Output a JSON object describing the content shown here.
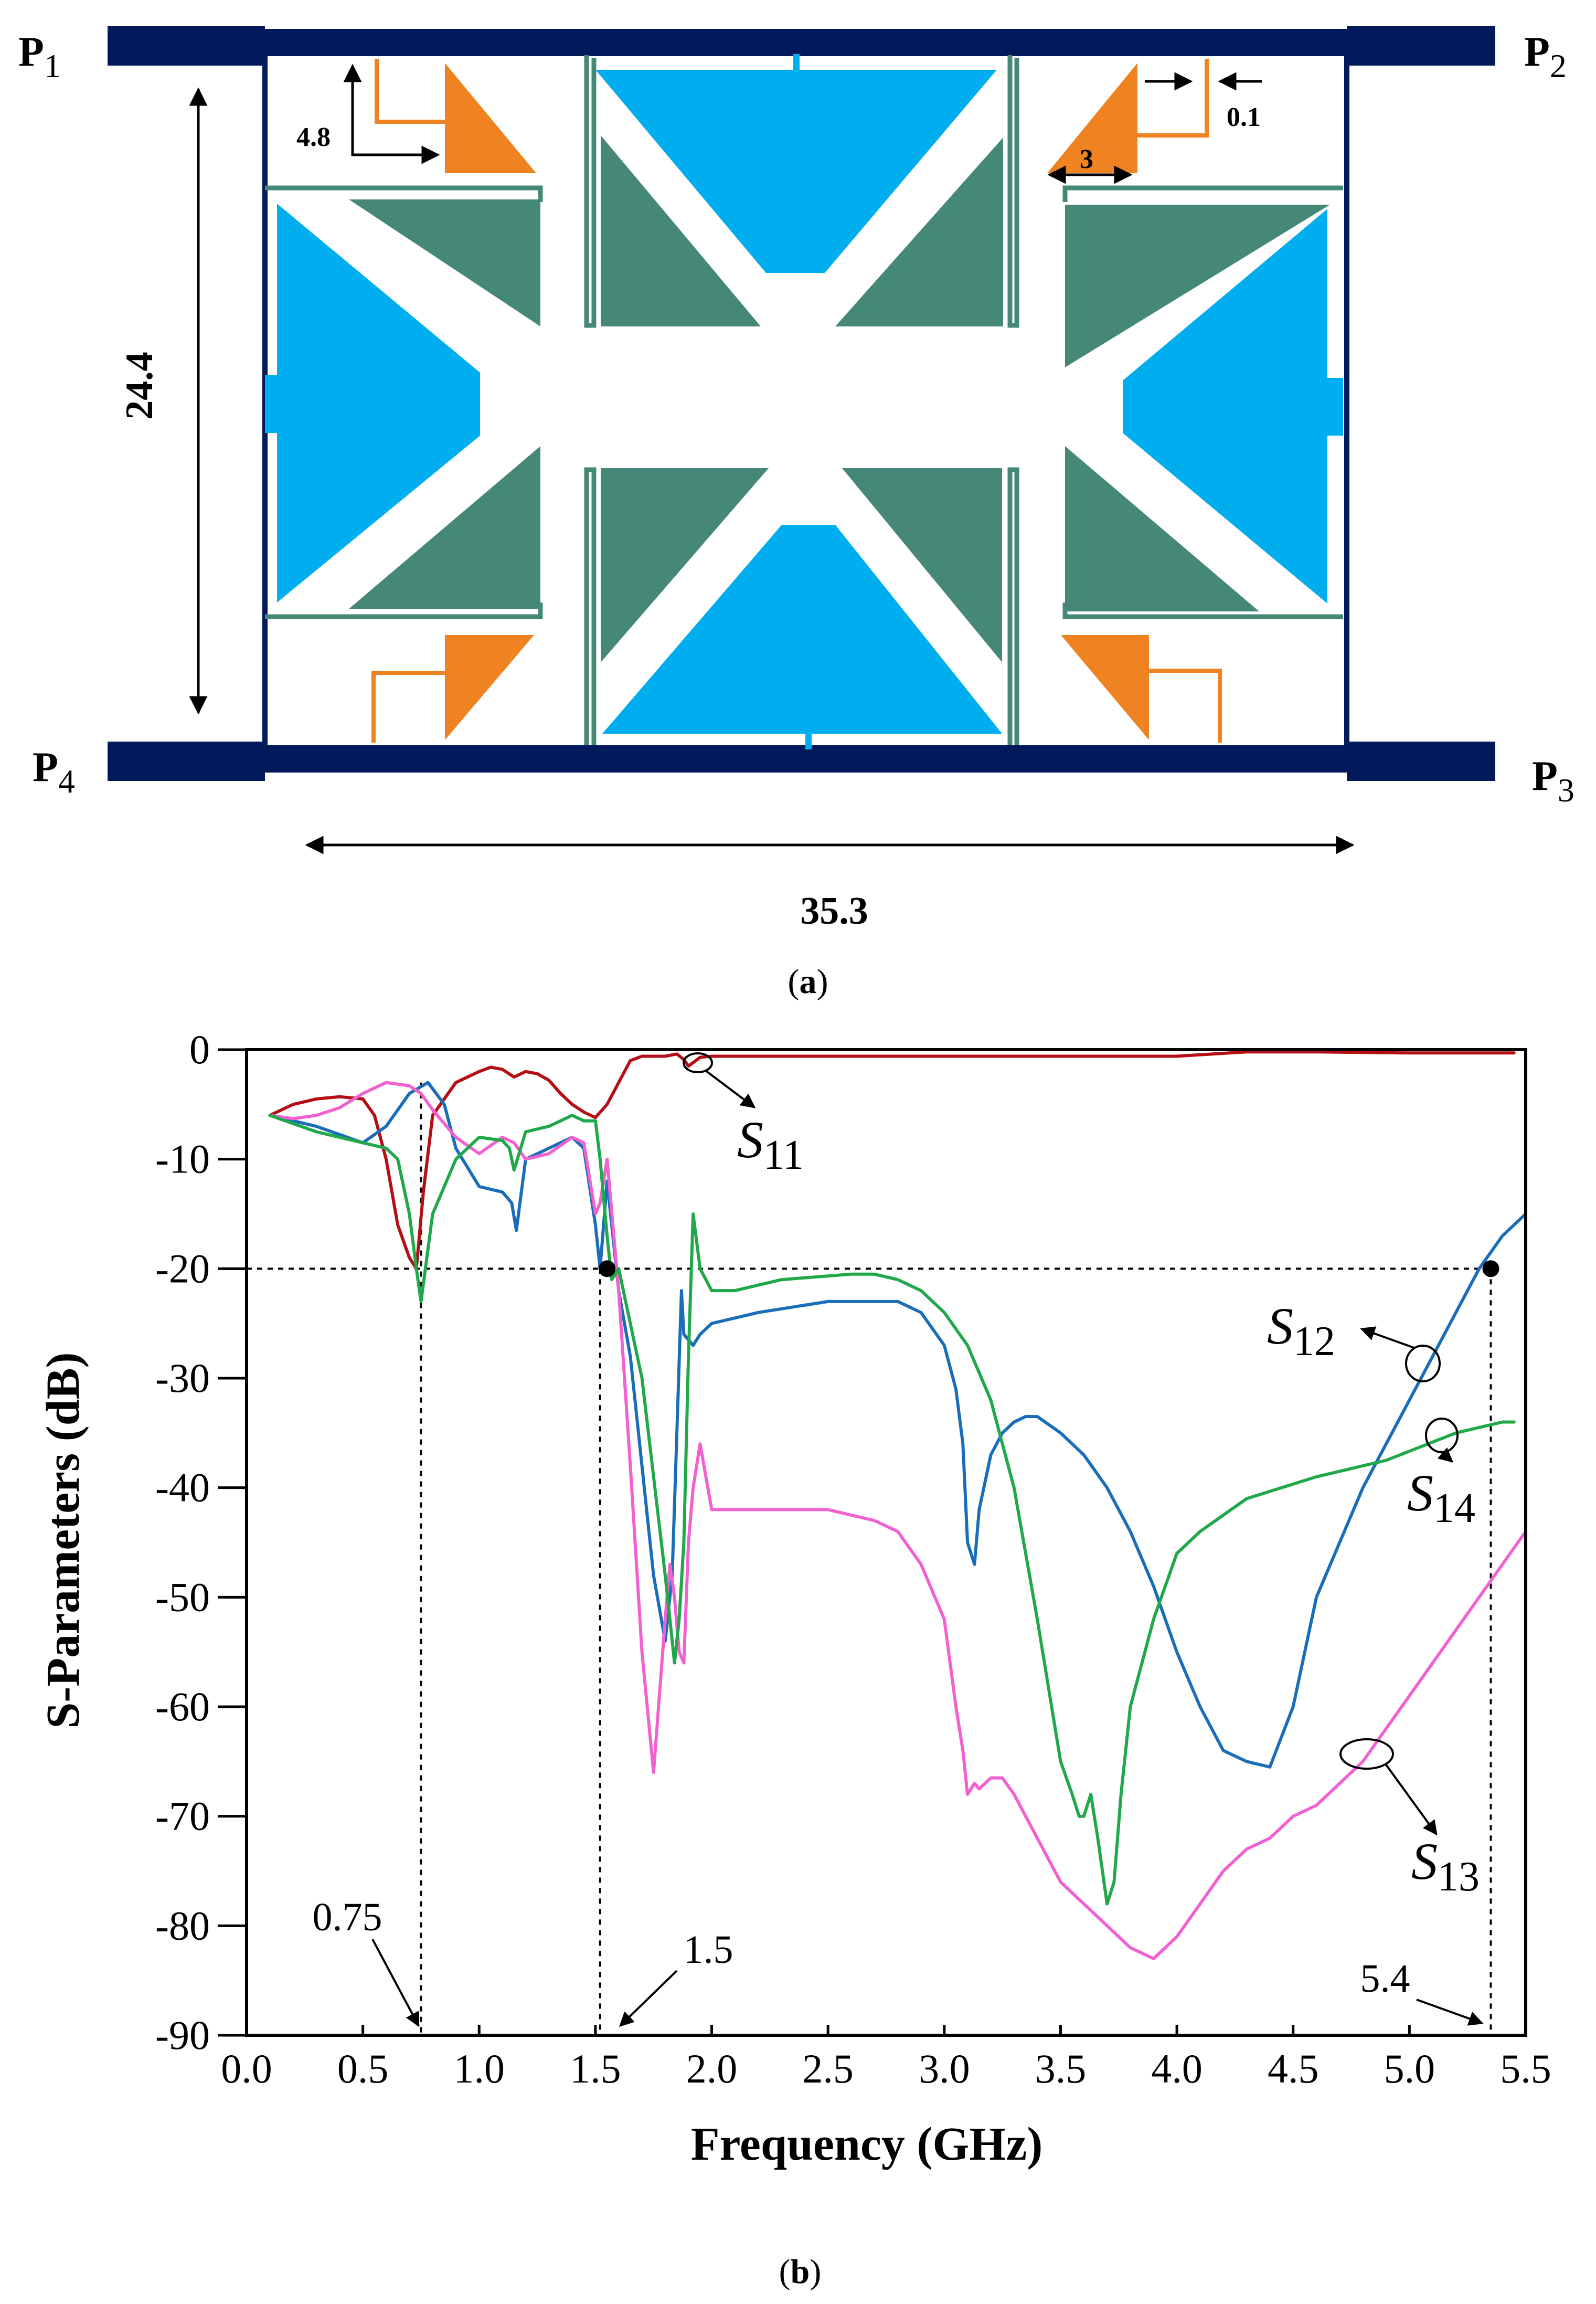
{
  "layout_diagram": {
    "ports": [
      {
        "label": "P",
        "sub": "1"
      },
      {
        "label": "P",
        "sub": "2"
      },
      {
        "label": "P",
        "sub": "3"
      },
      {
        "label": "P",
        "sub": "4"
      }
    ],
    "dimensions": {
      "height": "24.4",
      "width": "35.3",
      "stub_length": "4.8",
      "gap": "0.1",
      "triangle": "3"
    },
    "colors": {
      "line": "#001a5c",
      "patch": "#00aeef",
      "triangle": "#458878",
      "stub": "#f08321"
    }
  },
  "captions": {
    "a": "a",
    "b": "b"
  },
  "chart_data": {
    "type": "line",
    "xlabel": "Frequency  (GHz)",
    "ylabel": "S-Parameters (dB)",
    "xlim": [
      0.0,
      5.5
    ],
    "ylim": [
      -90,
      0
    ],
    "xticks": [
      "0.0",
      "0.5",
      "1.0",
      "1.5",
      "2.0",
      "2.5",
      "3.0",
      "3.5",
      "4.0",
      "4.5",
      "5.0",
      "5.5"
    ],
    "yticks": [
      "0",
      "-10",
      "-20",
      "-30",
      "-40",
      "-50",
      "-60",
      "-70",
      "-80",
      "-90"
    ],
    "series": [
      {
        "name": "S11",
        "label": "S",
        "sub": "11",
        "color": "#b40f14",
        "x": [
          0.1,
          0.2,
          0.3,
          0.4,
          0.5,
          0.55,
          0.6,
          0.65,
          0.7,
          0.73,
          0.76,
          0.8,
          0.9,
          1.0,
          1.05,
          1.1,
          1.15,
          1.2,
          1.25,
          1.3,
          1.35,
          1.4,
          1.45,
          1.5,
          1.55,
          1.6,
          1.65,
          1.7,
          1.8,
          1.85,
          1.88,
          1.9,
          1.95,
          2.0,
          2.5,
          3.0,
          3.5,
          4.0,
          4.3,
          4.6,
          5.0,
          5.45
        ],
        "y": [
          -6,
          -5,
          -4.5,
          -4.3,
          -4.5,
          -6,
          -10,
          -16,
          -19,
          -20,
          -13,
          -6,
          -3,
          -2,
          -1.6,
          -1.8,
          -2.5,
          -2,
          -2.2,
          -2.8,
          -4,
          -5,
          -5.7,
          -6.2,
          -5,
          -3,
          -1,
          -0.6,
          -0.6,
          -0.4,
          -0.9,
          -1.5,
          -0.7,
          -0.6,
          -0.6,
          -0.6,
          -0.6,
          -0.6,
          -0.2,
          -0.2,
          -0.3,
          -0.3
        ]
      },
      {
        "name": "S12",
        "label": "S",
        "sub": "12",
        "color": "#1a6eb9",
        "x": [
          0.1,
          0.3,
          0.5,
          0.6,
          0.7,
          0.78,
          0.85,
          0.9,
          1.0,
          1.1,
          1.14,
          1.16,
          1.2,
          1.3,
          1.4,
          1.45,
          1.5,
          1.52,
          1.55,
          1.6,
          1.65,
          1.7,
          1.75,
          1.8,
          1.83,
          1.85,
          1.87,
          1.88,
          1.92,
          1.95,
          2.0,
          2.2,
          2.5,
          2.6,
          2.8,
          2.9,
          3.0,
          3.05,
          3.08,
          3.1,
          3.13,
          3.15,
          3.2,
          3.25,
          3.3,
          3.35,
          3.4,
          3.5,
          3.6,
          3.7,
          3.8,
          3.9,
          4.0,
          4.1,
          4.2,
          4.3,
          4.4,
          4.5,
          4.6,
          4.7,
          4.8,
          4.9,
          5.0,
          5.1,
          5.2,
          5.3,
          5.4,
          5.5
        ],
        "y": [
          -6,
          -7,
          -8.5,
          -7,
          -4,
          -3,
          -5,
          -9,
          -12.5,
          -13,
          -14,
          -16.5,
          -10,
          -9,
          -8,
          -9,
          -16,
          -20,
          -12,
          -22,
          -28,
          -38,
          -48,
          -54,
          -48,
          -35,
          -22,
          -26,
          -27,
          -26,
          -25,
          -24,
          -23,
          -23,
          -23,
          -24,
          -27,
          -31,
          -36,
          -45,
          -47,
          -42,
          -37,
          -35,
          -34,
          -33.5,
          -33.5,
          -35,
          -37,
          -40,
          -44,
          -49,
          -55,
          -60,
          -64,
          -65,
          -65.5,
          -60,
          -50,
          -45,
          -40,
          -36,
          -32,
          -28,
          -24,
          -20,
          -17,
          -15
        ]
      },
      {
        "name": "S13",
        "label": "S",
        "sub": "13",
        "color": "#f261d0",
        "x": [
          0.1,
          0.2,
          0.3,
          0.4,
          0.5,
          0.6,
          0.7,
          0.75,
          0.8,
          0.9,
          1.0,
          1.1,
          1.15,
          1.2,
          1.3,
          1.4,
          1.45,
          1.5,
          1.52,
          1.55,
          1.6,
          1.65,
          1.7,
          1.75,
          1.8,
          1.82,
          1.84,
          1.86,
          1.88,
          1.9,
          1.92,
          1.95,
          2.0,
          2.3,
          2.5,
          2.7,
          2.8,
          2.9,
          3.0,
          3.05,
          3.08,
          3.1,
          3.13,
          3.15,
          3.2,
          3.25,
          3.3,
          3.4,
          3.5,
          3.6,
          3.7,
          3.8,
          3.85,
          3.9,
          4.0,
          4.1,
          4.2,
          4.3,
          4.4,
          4.5,
          4.6,
          4.7,
          4.8,
          4.9,
          5.0,
          5.1,
          5.2,
          5.3,
          5.4,
          5.5
        ],
        "y": [
          -6,
          -6.3,
          -6,
          -5.3,
          -4,
          -3,
          -3.3,
          -4,
          -5.5,
          -8,
          -9.5,
          -8,
          -8.5,
          -10,
          -9.5,
          -8,
          -8.5,
          -15,
          -14,
          -10,
          -22,
          -38,
          -55,
          -66,
          -52,
          -47,
          -50,
          -55,
          -56,
          -45,
          -40,
          -36,
          -42,
          -42,
          -42,
          -43,
          -44,
          -47,
          -52,
          -60,
          -64,
          -68,
          -67,
          -67.5,
          -66.5,
          -66.5,
          -68,
          -72,
          -76,
          -78,
          -80,
          -82,
          -82.5,
          -83,
          -81,
          -78,
          -75,
          -73,
          -72,
          -70,
          -69,
          -67,
          -65,
          -62,
          -59,
          -56,
          -53,
          -50,
          -47,
          -44
        ]
      },
      {
        "name": "S14",
        "label": "S",
        "sub": "14",
        "color": "#21a84a",
        "x": [
          0.1,
          0.3,
          0.5,
          0.6,
          0.65,
          0.7,
          0.73,
          0.75,
          0.8,
          0.9,
          1.0,
          1.1,
          1.13,
          1.15,
          1.2,
          1.3,
          1.4,
          1.45,
          1.5,
          1.52,
          1.55,
          1.57,
          1.6,
          1.63,
          1.7,
          1.8,
          1.82,
          1.84,
          1.86,
          1.88,
          1.9,
          1.92,
          1.95,
          2.0,
          2.1,
          2.3,
          2.6,
          2.7,
          2.8,
          2.9,
          3.0,
          3.1,
          3.2,
          3.3,
          3.4,
          3.5,
          3.55,
          3.58,
          3.6,
          3.63,
          3.66,
          3.7,
          3.73,
          3.76,
          3.8,
          3.9,
          4.0,
          4.1,
          4.3,
          4.6,
          4.9,
          5.2,
          5.4,
          5.45
        ],
        "y": [
          -6,
          -7.5,
          -8.5,
          -9,
          -10,
          -15,
          -20,
          -23,
          -15,
          -10,
          -8,
          -8.3,
          -9,
          -11,
          -7.5,
          -7,
          -6,
          -6.5,
          -6.5,
          -10,
          -17,
          -21,
          -20,
          -23,
          -30,
          -48,
          -52,
          -56,
          -52,
          -45,
          -28,
          -15,
          -20,
          -22,
          -22,
          -21,
          -20.5,
          -20.5,
          -21,
          -22,
          -24,
          -27,
          -32,
          -40,
          -52,
          -65,
          -68,
          -70,
          -70,
          -68,
          -72,
          -78,
          -76,
          -68,
          -60,
          -52,
          -46,
          -44,
          -41,
          -39,
          -37.5,
          -35,
          -34,
          -34
        ]
      }
    ],
    "markers": [
      {
        "x": 1.55,
        "y": -20
      },
      {
        "x": 5.35,
        "y": -20
      }
    ],
    "ref_lines": {
      "y": -20
    },
    "vlines": [
      {
        "x": 0.75,
        "y_from": -3
      },
      {
        "x": 1.52,
        "y_from": -20
      },
      {
        "x": 5.35,
        "y_from": -20
      }
    ],
    "annotations": [
      {
        "text": "0.75"
      },
      {
        "text": "1.5"
      },
      {
        "text": "5.4"
      }
    ]
  }
}
